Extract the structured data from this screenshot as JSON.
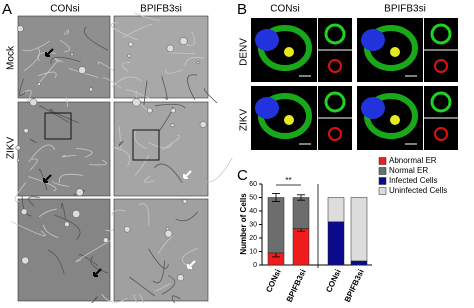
{
  "panels": {
    "a": {
      "label": "A",
      "columns": [
        "CONsi",
        "BPIFB3si"
      ],
      "rows": [
        "Mock",
        "ZIKV"
      ]
    },
    "b": {
      "label": "B",
      "columns": [
        "CONsi",
        "BPIFB3si"
      ],
      "rows": [
        "DENV",
        "ZIKV"
      ]
    },
    "c": {
      "label": "C"
    }
  },
  "chart_data": {
    "type": "bar",
    "stacked": true,
    "y_label": "Number of Cells",
    "categories": [
      "CONsi",
      "BPIFB3si",
      "CONsi",
      "BPIFB3si"
    ],
    "series": [
      {
        "name": "Abnormal ER",
        "color": "#ee1c1c",
        "values": [
          9,
          27,
          null,
          null
        ],
        "errors": [
          3,
          2,
          null,
          null
        ]
      },
      {
        "name": "Normal ER",
        "color": "#6d6d6d",
        "values": [
          41,
          23,
          null,
          null
        ],
        "errors": [
          3,
          2,
          null,
          null
        ]
      },
      {
        "name": "Infected Cells",
        "color": "#0a0a8c",
        "values": [
          null,
          null,
          32,
          3
        ]
      },
      {
        "name": "Uninfected Cells",
        "color": "#dcdcdc",
        "values": [
          null,
          null,
          18,
          47
        ]
      }
    ],
    "ylim": [
      0,
      60
    ],
    "yticks": [
      0,
      10,
      20,
      30,
      40,
      50,
      60
    ],
    "annotation": "**"
  }
}
